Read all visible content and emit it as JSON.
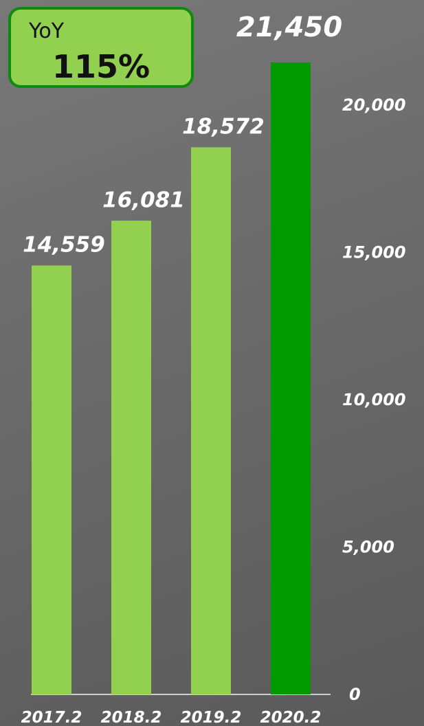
{
  "yoy": {
    "label": "YoY",
    "value": "115%"
  },
  "colors": {
    "bar": "#92d050",
    "highlight": "#009900",
    "text": "#ffffff",
    "axis": "#cccccc"
  },
  "chart_data": {
    "type": "bar",
    "categories": [
      "2017.2",
      "2018.2",
      "2019.2",
      "2020.2"
    ],
    "values": [
      14559,
      16081,
      18572,
      21450
    ],
    "value_labels": [
      "14,559",
      "16,081",
      "18,572",
      "21,450"
    ],
    "highlight_index": 3,
    "ylim": [
      0,
      21450
    ],
    "y_ticks": [
      0,
      5000,
      10000,
      15000,
      20000
    ],
    "y_tick_labels": [
      "0",
      "5,000",
      "10,000",
      "15,000",
      "20,000"
    ],
    "y_axis_position": "right",
    "grid": false,
    "legend": "none"
  }
}
